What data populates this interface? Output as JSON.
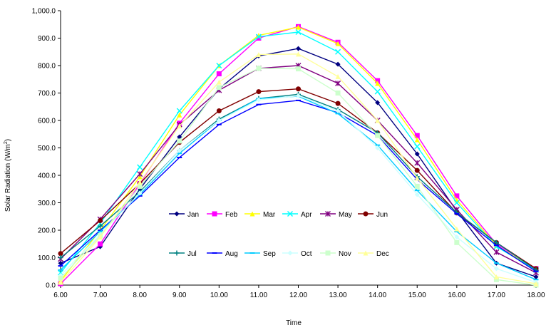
{
  "chart_data": {
    "type": "line",
    "title": "",
    "xlabel": "Time",
    "ylabel": "Solar Radiation (W/m2)",
    "ylabel_parts": {
      "main": "Solar Radiation (W/m",
      "sup": "2",
      "close": ")"
    },
    "x": [
      "6.00",
      "7.00",
      "8.00",
      "9.00",
      "10.00",
      "11.00",
      "12.00",
      "13.00",
      "14.00",
      "15.00",
      "16.00",
      "17.00",
      "18.00"
    ],
    "ylim": [
      0,
      1000
    ],
    "yticks": [
      "0.0",
      "100.0",
      "200.0",
      "300.0",
      "400.0",
      "500.0",
      "600.0",
      "700.0",
      "800.0",
      "900.0",
      "1,000.0"
    ],
    "grid": false,
    "legend_position": "center",
    "series": [
      {
        "name": "Jan",
        "color": "#000080",
        "marker": "diamond",
        "values": [
          80,
          140,
          350,
          540,
          715,
          835,
          862,
          805,
          665,
          478,
          270,
          80,
          30
        ]
      },
      {
        "name": "Feb",
        "color": "#ff00ff",
        "marker": "square",
        "values": [
          5,
          150,
          370,
          590,
          770,
          900,
          942,
          885,
          745,
          545,
          325,
          150,
          60
        ]
      },
      {
        "name": "Mar",
        "color": "#ffff00",
        "marker": "triangle",
        "values": [
          15,
          200,
          395,
          620,
          800,
          910,
          940,
          880,
          735,
          530,
          310,
          145,
          55
        ]
      },
      {
        "name": "Apr",
        "color": "#00ffff",
        "marker": "x",
        "values": [
          45,
          225,
          430,
          635,
          800,
          905,
          922,
          850,
          705,
          505,
          300,
          140,
          55
        ]
      },
      {
        "name": "May",
        "color": "#800080",
        "marker": "star",
        "values": [
          95,
          240,
          405,
          585,
          710,
          790,
          800,
          735,
          600,
          445,
          275,
          120,
          45
        ]
      },
      {
        "name": "Jun",
        "color": "#800000",
        "marker": "circle",
        "values": [
          115,
          235,
          370,
          520,
          635,
          705,
          715,
          662,
          555,
          418,
          263,
          155,
          60
        ]
      },
      {
        "name": "Jul",
        "color": "#008080",
        "marker": "plus",
        "values": [
          100,
          215,
          340,
          490,
          605,
          680,
          695,
          640,
          555,
          395,
          265,
          155,
          55
        ]
      },
      {
        "name": "Aug",
        "color": "#0000ff",
        "marker": "dash",
        "values": [
          70,
          200,
          325,
          465,
          585,
          658,
          673,
          628,
          545,
          385,
          260,
          145,
          50
        ]
      },
      {
        "name": "Sep",
        "color": "#00ccff",
        "marker": "dash",
        "values": [
          55,
          195,
          330,
          480,
          600,
          680,
          688,
          625,
          510,
          345,
          195,
          80,
          20
        ]
      },
      {
        "name": "Oct",
        "color": "#ccffff",
        "marker": "diamond",
        "values": [
          35,
          185,
          335,
          490,
          600,
          675,
          690,
          635,
          500,
          330,
          175,
          60,
          10
        ]
      },
      {
        "name": "Nov",
        "color": "#ccffcc",
        "marker": "square",
        "values": [
          25,
          180,
          360,
          525,
          720,
          790,
          788,
          700,
          545,
          360,
          155,
          20,
          0
        ]
      },
      {
        "name": "Dec",
        "color": "#ffff99",
        "marker": "triangle",
        "values": [
          10,
          175,
          375,
          580,
          740,
          840,
          842,
          760,
          600,
          390,
          205,
          30,
          5
        ]
      }
    ]
  }
}
